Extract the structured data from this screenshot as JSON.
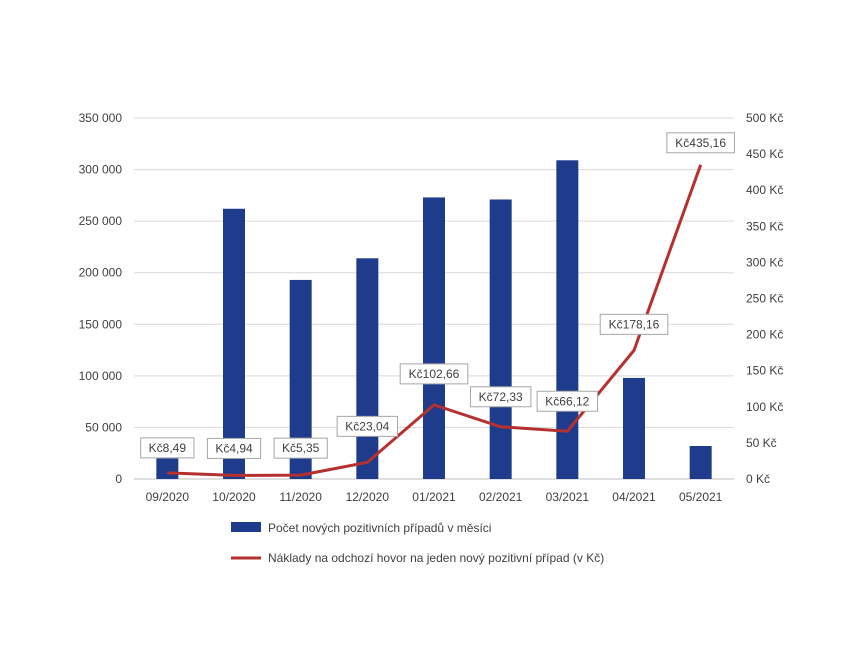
{
  "chart_data": {
    "type": "bar+line",
    "categories": [
      "09/2020",
      "10/2020",
      "11/2020",
      "12/2020",
      "01/2021",
      "02/2021",
      "03/2021",
      "04/2021",
      "05/2021"
    ],
    "series": [
      {
        "name": "Počet nových pozitivních případů v měsíci",
        "type": "bar",
        "axis": "left",
        "color": "#1f3c8c",
        "values": [
          20000,
          262000,
          193000,
          214000,
          273000,
          271000,
          309000,
          98000,
          32000
        ]
      },
      {
        "name": "Náklady na odchozí hovor na jeden nový pozitivní případ (v Kč)",
        "type": "line",
        "axis": "right",
        "color": "#b5302f",
        "values": [
          8.49,
          4.94,
          5.35,
          23.04,
          102.66,
          72.33,
          66.12,
          178.16,
          435.16
        ],
        "labels": [
          "Kč8,49",
          "Kč4,94",
          "Kč5,35",
          "Kč23,04",
          "Kč102,66",
          "Kč72,33",
          "Kč66,12",
          "Kč178,16",
          "Kč435,16"
        ]
      }
    ],
    "y_left": {
      "ylim": [
        0,
        350000
      ],
      "ticks": [
        0,
        50000,
        100000,
        150000,
        200000,
        250000,
        300000,
        350000
      ],
      "tick_labels": [
        "0",
        "50 000",
        "100 000",
        "150 000",
        "200 000",
        "250 000",
        "300 000",
        "350 000"
      ]
    },
    "y_right": {
      "ylim": [
        0,
        500
      ],
      "ticks": [
        0,
        50,
        100,
        150,
        200,
        250,
        300,
        350,
        400,
        450,
        500
      ],
      "tick_labels": [
        "0 Kč",
        "50 Kč",
        "100 Kč",
        "150 Kč",
        "200 Kč",
        "250 Kč",
        "300 Kč",
        "350 Kč",
        "400 Kč",
        "450 Kč",
        "500 Kč"
      ]
    },
    "grid": true,
    "legend_position": "bottom"
  }
}
